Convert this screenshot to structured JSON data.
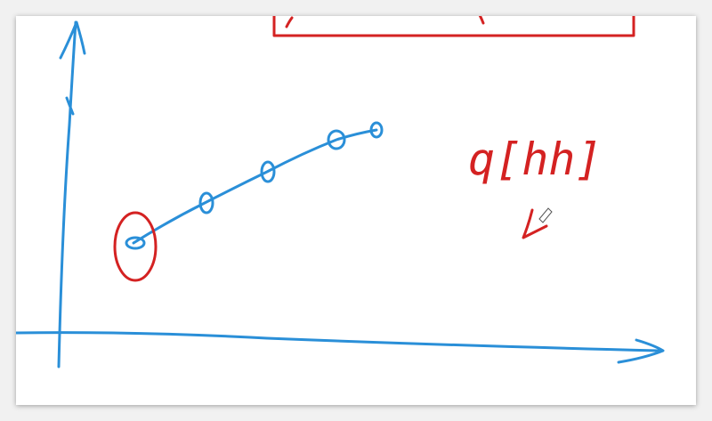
{
  "annotation": "q[hh]"
}
